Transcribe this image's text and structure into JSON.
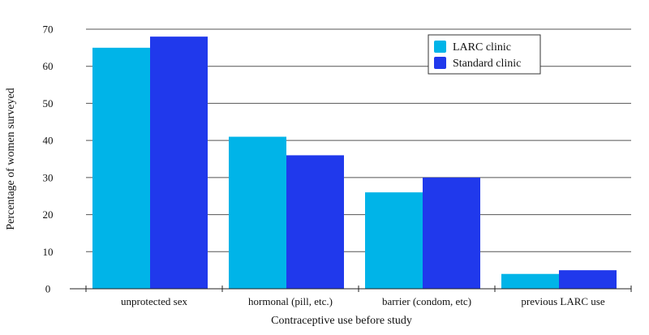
{
  "chart_data": {
    "type": "bar",
    "categories": [
      "unprotected sex",
      "hormonal (pill, etc.)",
      "barrier (condom, etc)",
      "previous LARC use"
    ],
    "series": [
      {
        "name": "LARC clinic",
        "values": [
          65,
          41,
          26,
          4
        ],
        "color": "#00b4e8"
      },
      {
        "name": "Standard clinic",
        "values": [
          68,
          36,
          30,
          5
        ],
        "color": "#2039ec"
      }
    ],
    "xlabel": "Contraceptive use before study",
    "ylabel": "Percentage of women surveyed",
    "ylim": [
      0,
      70
    ],
    "yticks": [
      0,
      10,
      20,
      30,
      40,
      50,
      60,
      70
    ],
    "grid": true,
    "legend_position": "top-right"
  }
}
